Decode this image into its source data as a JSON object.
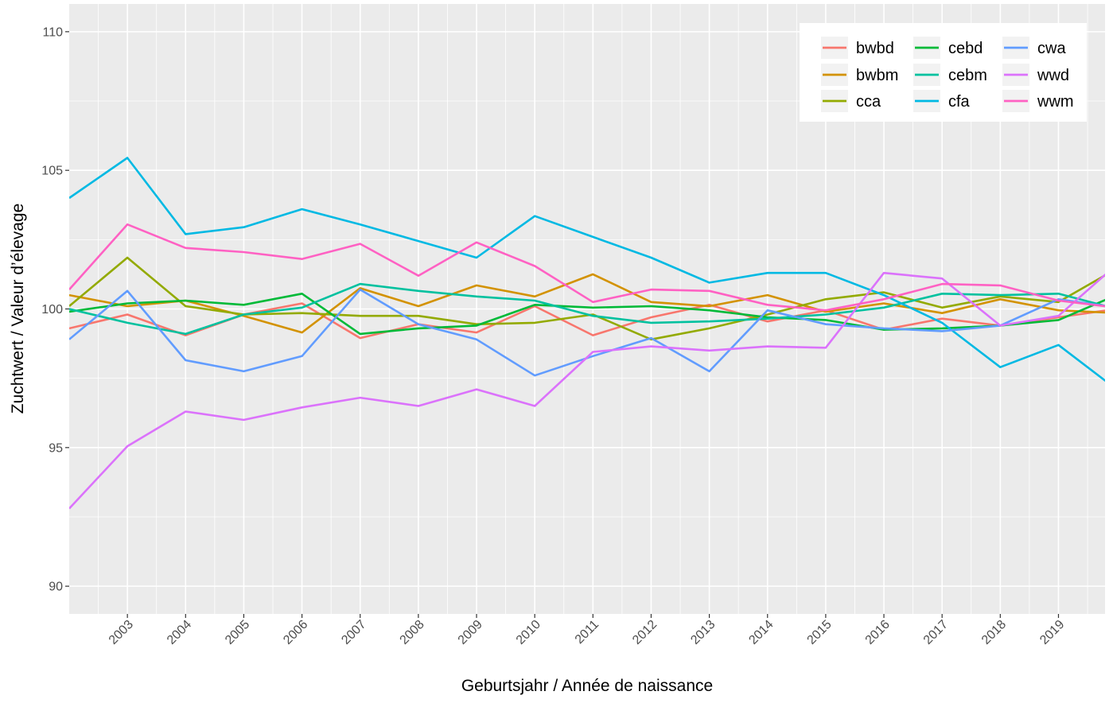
{
  "chart_data": {
    "type": "line",
    "title": "",
    "xlabel": "Geburtsjahr / Année de naissance",
    "ylabel": "Zuchtwert / Valeur d’élevage",
    "xlim": [
      2002,
      2019.8
    ],
    "ylim": [
      89,
      111
    ],
    "x_ticks": [
      2003,
      2004,
      2005,
      2006,
      2007,
      2008,
      2009,
      2010,
      2011,
      2012,
      2013,
      2014,
      2015,
      2016,
      2017,
      2018,
      2019
    ],
    "y_ticks": [
      90,
      95,
      100,
      105,
      110
    ],
    "grid": true,
    "legend_position": "top-right",
    "x": [
      2002,
      2003,
      2004,
      2005,
      2006,
      2007,
      2008,
      2009,
      2010,
      2011,
      2012,
      2013,
      2014,
      2015,
      2016,
      2017,
      2018,
      2019,
      2020
    ],
    "series": [
      {
        "name": "bwbd",
        "color": "#F8766D",
        "values": [
          99.3,
          99.8,
          99.05,
          99.8,
          100.2,
          98.95,
          99.45,
          99.15,
          100.1,
          99.05,
          99.7,
          100.15,
          99.55,
          99.95,
          99.25,
          99.65,
          99.4,
          99.7,
          100.0
        ]
      },
      {
        "name": "bwbm",
        "color": "#D39200",
        "values": [
          100.5,
          100.1,
          100.3,
          99.75,
          99.15,
          100.75,
          100.1,
          100.85,
          100.45,
          101.25,
          100.25,
          100.1,
          100.5,
          99.9,
          100.2,
          99.85,
          100.35,
          99.95,
          99.85
        ]
      },
      {
        "name": "cca",
        "color": "#93AA00",
        "values": [
          100.1,
          101.85,
          100.1,
          99.8,
          99.85,
          99.75,
          99.75,
          99.45,
          99.5,
          99.8,
          98.9,
          99.3,
          99.8,
          100.35,
          100.6,
          100.05,
          100.45,
          100.25,
          101.45
        ]
      },
      {
        "name": "cebd",
        "color": "#00BA38",
        "values": [
          99.9,
          100.2,
          100.3,
          100.15,
          100.55,
          99.1,
          99.3,
          99.4,
          100.15,
          100.05,
          100.1,
          99.95,
          99.7,
          99.6,
          99.25,
          99.3,
          99.4,
          99.6,
          100.5
        ]
      },
      {
        "name": "cebm",
        "color": "#00C19F",
        "values": [
          100.0,
          99.5,
          99.1,
          99.8,
          100.05,
          100.9,
          100.65,
          100.45,
          100.3,
          99.75,
          99.5,
          99.55,
          99.65,
          99.8,
          100.05,
          100.55,
          100.5,
          100.55,
          100.0
        ]
      },
      {
        "name": "cfa",
        "color": "#00B9E3",
        "values": [
          104.0,
          105.45,
          102.7,
          102.95,
          103.6,
          103.05,
          102.45,
          101.85,
          103.35,
          102.6,
          101.85,
          100.95,
          101.3,
          101.3,
          100.5,
          99.5,
          97.9,
          98.7,
          97.1
        ]
      },
      {
        "name": "cwa",
        "color": "#619CFF",
        "values": [
          98.9,
          100.65,
          98.15,
          97.75,
          98.3,
          100.7,
          99.45,
          98.9,
          97.6,
          98.3,
          98.95,
          97.75,
          99.95,
          99.45,
          99.3,
          99.2,
          99.4,
          100.35,
          100.05
        ]
      },
      {
        "name": "wwd",
        "color": "#DB72FB",
        "values": [
          92.8,
          95.05,
          96.3,
          96.0,
          96.45,
          96.8,
          96.5,
          97.1,
          96.5,
          98.45,
          98.65,
          98.5,
          98.65,
          98.6,
          101.3,
          101.1,
          99.4,
          99.75,
          101.6
        ]
      },
      {
        "name": "wwm",
        "color": "#FF61C3",
        "values": [
          100.7,
          103.05,
          102.2,
          102.05,
          101.8,
          102.35,
          101.2,
          102.4,
          101.55,
          100.25,
          100.7,
          100.65,
          100.15,
          99.95,
          100.35,
          100.9,
          100.85,
          100.3,
          100.05
        ]
      }
    ]
  }
}
